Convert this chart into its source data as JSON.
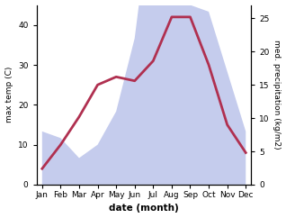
{
  "months": [
    "Jan",
    "Feb",
    "Mar",
    "Apr",
    "May",
    "Jun",
    "Jul",
    "Aug",
    "Sep",
    "Oct",
    "Nov",
    "Dec"
  ],
  "temp": [
    4,
    10,
    17,
    25,
    27,
    26,
    31,
    42,
    42,
    30,
    15,
    8
  ],
  "precip": [
    8,
    7,
    4,
    6,
    11,
    22,
    44,
    42,
    27,
    26,
    17,
    8
  ],
  "temp_color": "#b03050",
  "precip_fill_color": "#c5cced",
  "temp_ylim": [
    0,
    45
  ],
  "precip_ylim": [
    0,
    27
  ],
  "temp_yticks": [
    0,
    10,
    20,
    30,
    40
  ],
  "precip_yticks": [
    0,
    5,
    10,
    15,
    20,
    25
  ],
  "xlabel": "date (month)",
  "ylabel_left": "max temp (C)",
  "ylabel_right": "med. precipitation (kg/m2)",
  "background_color": "#ffffff",
  "linewidth": 2.0,
  "font_size": 6.5,
  "xlabel_fontsize": 7.5
}
